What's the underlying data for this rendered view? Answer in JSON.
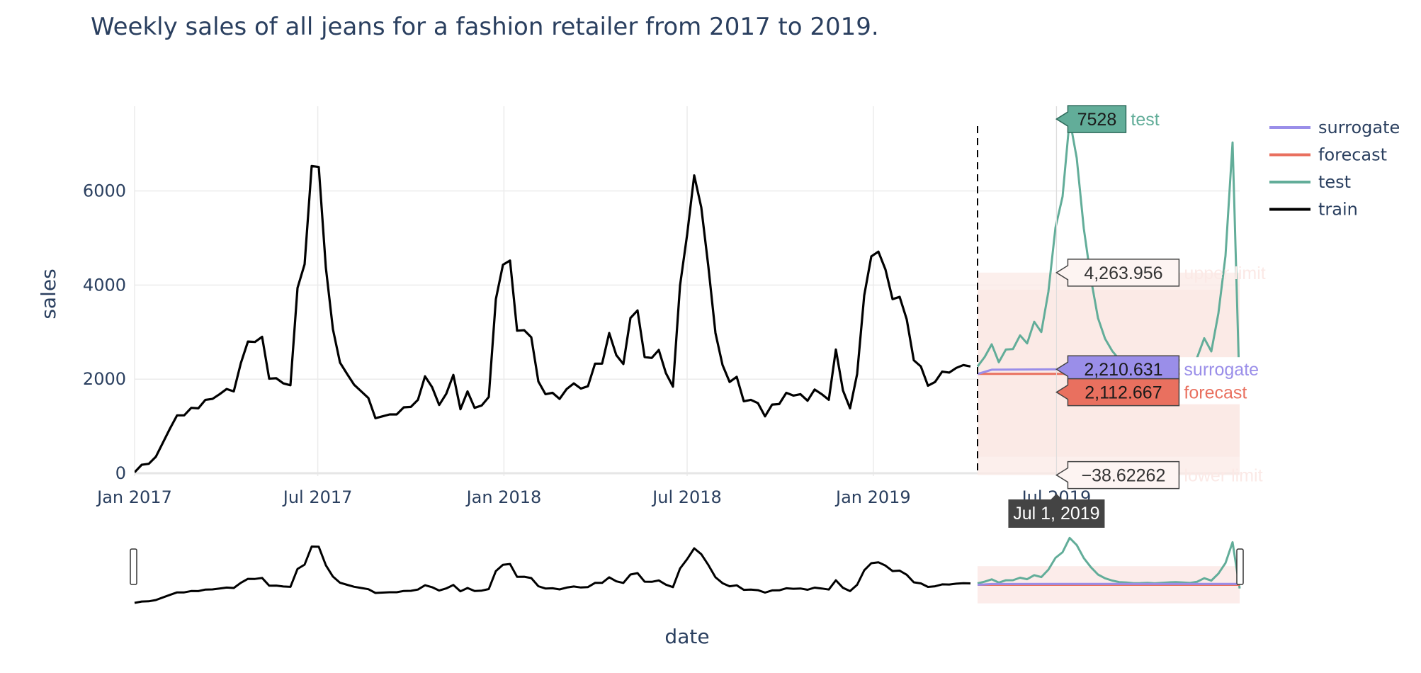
{
  "chart_data": {
    "type": "line",
    "title": "Weekly sales of all jeans for a fashion retailer from 2017 to 2019.",
    "xlabel": "date",
    "ylabel": "sales",
    "x_ticks": [
      "Jan 2017",
      "Jul 2017",
      "Jan 2018",
      "Jul 2018",
      "Jan 2019"
    ],
    "y_ticks": [
      "0",
      "2000",
      "4000",
      "6000"
    ],
    "ylim": [
      -60,
      7800
    ],
    "grid": true,
    "legend": {
      "position": "top-right",
      "entries": [
        "surrogate",
        "forecast",
        "test",
        "train"
      ]
    },
    "colors": {
      "train": "#000000",
      "test": "#62ad99",
      "forecast": "#e9705f",
      "surrogate": "#9a8ee9",
      "interval": "#fbe9e6",
      "tooltip": "#444444"
    },
    "series": [
      {
        "name": "train",
        "x": [
          "2017-01-01",
          "2017-01-08",
          "2017-01-15",
          "2017-01-22",
          "2017-01-29",
          "2017-02-05",
          "2017-02-12",
          "2017-02-19",
          "2017-02-26",
          "2017-03-05",
          "2017-03-12",
          "2017-03-19",
          "2017-03-26",
          "2017-04-02",
          "2017-04-09",
          "2017-04-16",
          "2017-04-23",
          "2017-04-30",
          "2017-05-07",
          "2017-05-14",
          "2017-05-21",
          "2017-05-28",
          "2017-06-04",
          "2017-06-11",
          "2017-06-18",
          "2017-06-25",
          "2017-07-02",
          "2017-07-09",
          "2017-07-16",
          "2017-07-23",
          "2017-07-30",
          "2017-08-06",
          "2017-08-13",
          "2017-08-20",
          "2017-08-27",
          "2017-09-03",
          "2017-09-10",
          "2017-09-17",
          "2017-09-24",
          "2017-10-01",
          "2017-10-08",
          "2017-10-15",
          "2017-10-22",
          "2017-10-29",
          "2017-11-05",
          "2017-11-12",
          "2017-11-19",
          "2017-11-26",
          "2017-12-03",
          "2017-12-10",
          "2017-12-17",
          "2017-12-24",
          "2017-12-31",
          "2018-01-07",
          "2018-01-14",
          "2018-01-21",
          "2018-01-28",
          "2018-02-04",
          "2018-02-11",
          "2018-02-18",
          "2018-02-25",
          "2018-03-04",
          "2018-03-11",
          "2018-03-18",
          "2018-03-25",
          "2018-04-01",
          "2018-04-08",
          "2018-04-15",
          "2018-04-22",
          "2018-04-29",
          "2018-05-06",
          "2018-05-13",
          "2018-05-20",
          "2018-05-27",
          "2018-06-03",
          "2018-06-10",
          "2018-06-17",
          "2018-06-24",
          "2018-07-01",
          "2018-07-08",
          "2018-07-15",
          "2018-07-22",
          "2018-07-29",
          "2018-08-05",
          "2018-08-12",
          "2018-08-19",
          "2018-08-26",
          "2018-09-02",
          "2018-09-09",
          "2018-09-16",
          "2018-09-23",
          "2018-09-30",
          "2018-10-07",
          "2018-10-14",
          "2018-10-21",
          "2018-10-28",
          "2018-11-04",
          "2018-11-11",
          "2018-11-18",
          "2018-11-25",
          "2018-12-02",
          "2018-12-09",
          "2018-12-16",
          "2018-12-23",
          "2018-12-30",
          "2019-01-06",
          "2019-01-13",
          "2019-01-20",
          "2019-01-27",
          "2019-02-03",
          "2019-02-10",
          "2019-02-17",
          "2019-02-24",
          "2019-03-03",
          "2019-03-10",
          "2019-03-17",
          "2019-03-24",
          "2019-03-31",
          "2019-04-07"
        ],
        "values": [
          20,
          180,
          200,
          350,
          650,
          950,
          1230,
          1230,
          1390,
          1380,
          1560,
          1580,
          1680,
          1790,
          1740,
          2340,
          2800,
          2790,
          2900,
          2010,
          2020,
          1910,
          1870,
          3940,
          4440,
          6530,
          6510,
          4370,
          3060,
          2350,
          2110,
          1880,
          1740,
          1600,
          1170,
          1210,
          1250,
          1250,
          1400,
          1410,
          1560,
          2060,
          1830,
          1450,
          1690,
          2090,
          1360,
          1740,
          1390,
          1440,
          1620,
          3700,
          4430,
          4520,
          3030,
          3040,
          2890,
          1950,
          1680,
          1710,
          1580,
          1790,
          1910,
          1800,
          1850,
          2330,
          2330,
          2980,
          2510,
          2320,
          3300,
          3460,
          2470,
          2450,
          2620,
          2130,
          1840,
          3990,
          5070,
          6330,
          5650,
          4390,
          2980,
          2300,
          1940,
          2050,
          1530,
          1560,
          1490,
          1210,
          1460,
          1470,
          1710,
          1650,
          1680,
          1540,
          1780,
          1680,
          1560,
          2630,
          1760,
          1380,
          2110,
          3780,
          4610,
          4710,
          4330,
          3700,
          3750,
          3270,
          2400,
          2270,
          1860,
          1940,
          2160,
          2140,
          2240,
          2300,
          2270
        ]
      },
      {
        "name": "test",
        "x": [
          "2019-04-14",
          "2019-04-21",
          "2019-04-28",
          "2019-05-05",
          "2019-05-12",
          "2019-05-19",
          "2019-05-26",
          "2019-06-02",
          "2019-06-09",
          "2019-06-16",
          "2019-06-23",
          "2019-06-30",
          "2019-07-07",
          "2019-07-14",
          "2019-07-21",
          "2019-07-28",
          "2019-08-04",
          "2019-08-11",
          "2019-08-18",
          "2019-08-25",
          "2019-09-01",
          "2019-09-08",
          "2019-09-15",
          "2019-09-22",
          "2019-09-29",
          "2019-10-06",
          "2019-10-13",
          "2019-10-20",
          "2019-10-27",
          "2019-11-03",
          "2019-11-10",
          "2019-11-17",
          "2019-11-24",
          "2019-12-01",
          "2019-12-08",
          "2019-12-15",
          "2019-12-22",
          "2019-12-29"
        ],
        "values": [
          2270,
          2470,
          2740,
          2360,
          2630,
          2640,
          2930,
          2760,
          3220,
          3000,
          3860,
          5220,
          5880,
          7528,
          6700,
          5200,
          4140,
          3300,
          2860,
          2600,
          2420,
          2380,
          2300,
          2310,
          2340,
          2280,
          2330,
          2390,
          2420,
          2380,
          2320,
          2460,
          2870,
          2590,
          3400,
          4620,
          7030,
          1680
        ]
      },
      {
        "name": "forecast",
        "x": [
          "2019-04-14",
          "2019-12-29"
        ],
        "values": [
          2112.667,
          2112.667
        ]
      },
      {
        "name": "surrogate",
        "x": [
          "2019-04-14",
          "2019-04-28",
          "2019-07-07",
          "2019-12-29"
        ],
        "values": [
          2110,
          2200,
          2210.631,
          2210.631
        ]
      }
    ],
    "interval": {
      "name": "forecast interval",
      "x": [
        "2019-04-14",
        "2019-12-29"
      ],
      "upper": 4263.956,
      "lower": -38.62262,
      "inner_upper": 3900,
      "inner_lower": 350
    },
    "split_date": "2019-04-14",
    "annotations": [
      {
        "label_key": "test",
        "value": "7528",
        "text": "test"
      },
      {
        "label_key": "upper",
        "value": "4,263.956",
        "text": "upper limit"
      },
      {
        "label_key": "surrogate",
        "value": "2,210.631",
        "text": "surrogate"
      },
      {
        "label_key": "forecast",
        "value": "2,112.667",
        "text": "forecast"
      },
      {
        "label_key": "lower",
        "value": "−38.62262",
        "text": "lower limit"
      }
    ],
    "hover_x_label": "Jul 1, 2019",
    "hover_date": "2019-07-01",
    "partial_tick_label": "Jul 2019"
  }
}
